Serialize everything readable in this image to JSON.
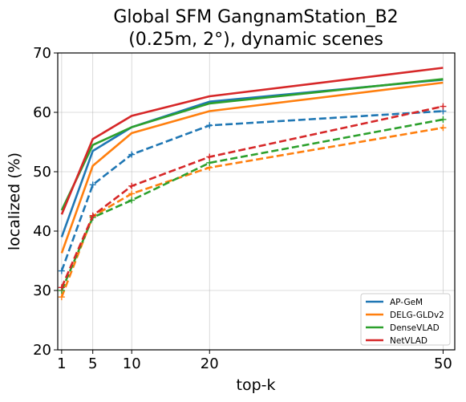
{
  "chart_data": {
    "type": "line",
    "title": [
      "Global SFM GangnamStation_B2",
      "(0.25m, 2°), dynamic scenes"
    ],
    "xlabel": "top-k",
    "ylabel": "localized (%)",
    "x": [
      1,
      5,
      10,
      20,
      50
    ],
    "xticks": [
      1,
      5,
      10,
      20,
      50
    ],
    "yticks": [
      20,
      30,
      40,
      50,
      60,
      70
    ],
    "xlim": [
      0.5,
      51.5
    ],
    "ylim": [
      20,
      70
    ],
    "grid": true,
    "legend_position": "lower-right",
    "series": [
      {
        "name": "AP-GeM",
        "color": "#1f77b4",
        "style": "solid",
        "values": [
          39.0,
          53.5,
          57.5,
          61.8,
          65.5
        ]
      },
      {
        "name": "DELG-GLDv2",
        "color": "#ff7f0e",
        "style": "solid",
        "values": [
          36.3,
          51.0,
          56.5,
          60.2,
          65.0
        ]
      },
      {
        "name": "DenseVLAD",
        "color": "#2ca02c",
        "style": "solid",
        "values": [
          43.5,
          54.5,
          57.5,
          61.5,
          65.6
        ]
      },
      {
        "name": "NetVLAD",
        "color": "#d62728",
        "style": "solid",
        "values": [
          42.8,
          55.5,
          59.4,
          62.7,
          67.5
        ]
      },
      {
        "color": "#1f77b4",
        "style": "dashed",
        "values": [
          33.3,
          47.8,
          52.9,
          57.8,
          60.2
        ]
      },
      {
        "color": "#ff7f0e",
        "style": "dashed",
        "values": [
          28.9,
          42.5,
          46.3,
          50.7,
          57.4
        ]
      },
      {
        "color": "#2ca02c",
        "style": "dashed",
        "values": [
          30.0,
          42.3,
          45.2,
          51.5,
          58.8
        ]
      },
      {
        "color": "#d62728",
        "style": "dashed",
        "values": [
          30.5,
          42.6,
          47.6,
          52.5,
          61.0
        ]
      }
    ]
  }
}
